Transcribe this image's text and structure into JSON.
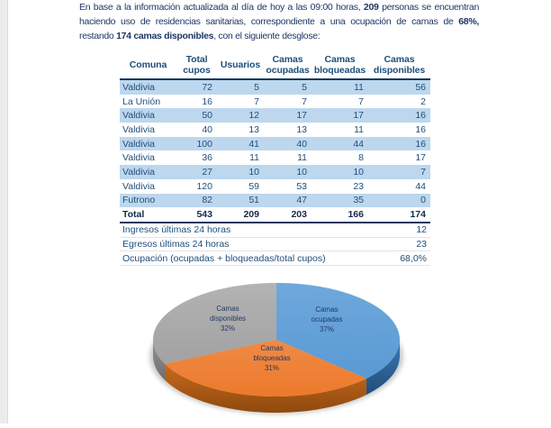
{
  "intro": {
    "segments": [
      {
        "text": "En base a la información actualizada al día de hoy a las 09:00 horas, ",
        "bold": false
      },
      {
        "text": "209",
        "bold": true
      },
      {
        "text": " personas se encuentran haciendo uso de residencias sanitarias, correspondiente a una ocupación de camas de ",
        "bold": false
      },
      {
        "text": "68%,",
        "bold": true
      },
      {
        "text": " restando ",
        "bold": false
      },
      {
        "text": "174 camas disponibles",
        "bold": true
      },
      {
        "text": ", con el siguiente desglose:",
        "bold": false
      }
    ]
  },
  "table": {
    "columns": [
      "Comuna",
      "Total cupos",
      "Usuarios",
      "Camas ocupadas",
      "Camas bloqueadas",
      "Camas disponibles"
    ],
    "rows": [
      [
        "Valdivia",
        "72",
        "5",
        "5",
        "11",
        "56"
      ],
      [
        "La Unión",
        "16",
        "7",
        "7",
        "7",
        "2"
      ],
      [
        "Valdivia",
        "50",
        "12",
        "17",
        "17",
        "16"
      ],
      [
        "Valdivia",
        "40",
        "13",
        "13",
        "11",
        "16"
      ],
      [
        "Valdivia",
        "100",
        "41",
        "40",
        "44",
        "16"
      ],
      [
        "Valdivia",
        "36",
        "11",
        "11",
        "8",
        "17"
      ],
      [
        "Valdivia",
        "27",
        "10",
        "10",
        "10",
        "7"
      ],
      [
        "Valdivia",
        "120",
        "59",
        "53",
        "23",
        "44"
      ],
      [
        "Futrono",
        "82",
        "51",
        "47",
        "35",
        "0"
      ]
    ],
    "total_row": [
      "Total",
      "543",
      "209",
      "203",
      "166",
      "174"
    ],
    "summary": [
      {
        "label": "Ingresos últimas 24 horas",
        "value": "12"
      },
      {
        "label": "Egresos últimas 24 horas",
        "value": "23"
      },
      {
        "label": "Ocupación (ocupadas + bloqueadas/total cupos)",
        "value": "68,0%"
      }
    ]
  },
  "chart_data": {
    "type": "pie",
    "style": "3d",
    "labels": [
      "Camas ocupadas",
      "Camas bloqueadas",
      "Camas disponibles"
    ],
    "values": [
      37,
      31,
      32
    ],
    "percent_labels": [
      "37%",
      "31%",
      "32%"
    ],
    "colors": [
      "#5B9BD5",
      "#ED7D31",
      "#A5A5A5"
    ],
    "start_angle_deg": 0,
    "direction": "clockwise",
    "legend": "none",
    "label_position": "inside"
  },
  "colors": {
    "paragraph_text": "#1F3864",
    "table_text": "#1F4E79",
    "table_band": "#BDD7EE",
    "table_border": "#17375E",
    "pie_label_text": "#1F3864"
  }
}
